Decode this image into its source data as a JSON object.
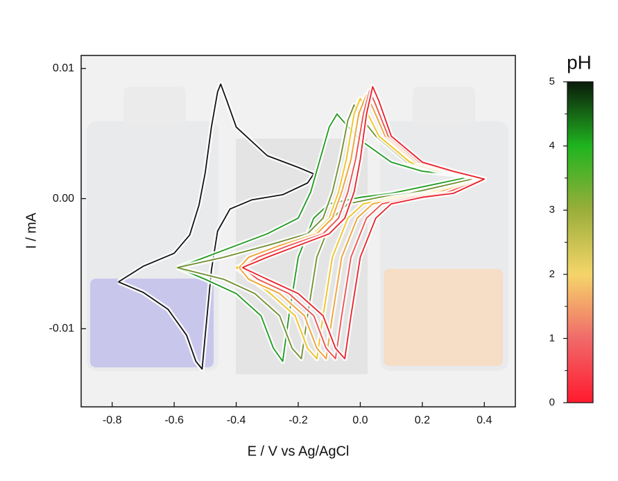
{
  "chart_data": {
    "type": "line",
    "xlabel": "E / V vs Ag/AgCl",
    "ylabel": "I / mA",
    "xlim": [
      -0.9,
      0.5
    ],
    "ylim": [
      -0.016,
      0.011
    ],
    "xticks": [
      -0.8,
      -0.6,
      -0.4,
      -0.2,
      {
        "value": 0,
        "label": "0.0"
      },
      0.2,
      0.4
    ],
    "yticks": [
      -0.01,
      {
        "value": 0,
        "label": "0.00"
      },
      0.01
    ],
    "series": [
      {
        "color": "#111111",
        "x": [
          -0.78,
          -0.7,
          -0.6,
          -0.55,
          -0.52,
          -0.5,
          -0.48,
          -0.46,
          -0.45,
          -0.43,
          -0.4,
          -0.3,
          -0.2,
          -0.15,
          -0.17,
          -0.25,
          -0.35,
          -0.42,
          -0.46,
          -0.48,
          -0.5,
          -0.51,
          -0.53,
          -0.56,
          -0.62,
          -0.7,
          -0.78
        ],
        "values": [
          -0.0064,
          -0.0052,
          -0.0042,
          -0.0028,
          -0.0005,
          0.002,
          0.0055,
          0.0082,
          0.0088,
          0.0075,
          0.0055,
          0.0033,
          0.0024,
          0.0019,
          0.0012,
          0.0003,
          -0.0001,
          -0.0008,
          -0.0025,
          -0.0055,
          -0.0105,
          -0.0131,
          -0.0125,
          -0.0105,
          -0.0085,
          -0.0072,
          -0.0064
        ]
      },
      {
        "color": "#1f9a1f",
        "x": [
          -0.59,
          -0.5,
          -0.4,
          -0.3,
          -0.2,
          -0.16,
          -0.13,
          -0.1,
          -0.075,
          -0.05,
          0,
          0.1,
          0.2,
          0.36,
          0.1,
          0,
          -0.1,
          -0.15,
          -0.2,
          -0.23,
          -0.25,
          -0.28,
          -0.32,
          -0.4,
          -0.5,
          -0.59
        ],
        "values": [
          -0.0053,
          -0.0045,
          -0.0036,
          -0.0027,
          -0.0015,
          0.0005,
          0.003,
          0.0055,
          0.0065,
          0.0058,
          0.0045,
          0.0028,
          0.0021,
          0.0017,
          0.0004,
          0.0001,
          -0.0004,
          -0.0015,
          -0.0045,
          -0.009,
          -0.0125,
          -0.0115,
          -0.009,
          -0.0073,
          -0.0062,
          -0.0053
        ]
      },
      {
        "color": "#6f8f2e",
        "x": [
          -0.59,
          -0.44,
          -0.3,
          -0.17,
          -0.12,
          -0.09,
          -0.065,
          -0.04,
          -0.02,
          0,
          0.05,
          0.15,
          0.25,
          0.38,
          0.16,
          0.06,
          -0.04,
          -0.09,
          -0.14,
          -0.17,
          -0.19,
          -0.22,
          -0.26,
          -0.34,
          -0.44,
          -0.59
        ],
        "values": [
          -0.0053,
          -0.0045,
          -0.0036,
          -0.0027,
          -0.0015,
          0.0005,
          0.003,
          0.006,
          0.0072,
          0.0063,
          0.0048,
          0.0028,
          0.0021,
          0.0016,
          0.0004,
          0.0001,
          -0.0004,
          -0.0015,
          -0.0045,
          -0.009,
          -0.0123,
          -0.0115,
          -0.009,
          -0.0073,
          -0.0062,
          -0.0053
        ]
      },
      {
        "color": "#f2c21e",
        "x": [
          -0.4,
          -0.25,
          -0.15,
          -0.1,
          -0.07,
          -0.045,
          -0.02,
          0,
          0.02,
          0.06,
          0.16,
          0.26,
          0.4,
          0.21,
          0.11,
          0.01,
          -0.04,
          -0.09,
          -0.12,
          -0.14,
          -0.17,
          -0.21,
          -0.29,
          -0.4
        ],
        "values": [
          -0.0053,
          -0.0036,
          -0.0027,
          -0.0015,
          0.0005,
          0.003,
          0.0065,
          0.0077,
          0.0067,
          0.0048,
          0.0028,
          0.0021,
          0.0015,
          0.0004,
          0.0001,
          -0.0004,
          -0.0015,
          -0.0045,
          -0.009,
          -0.0123,
          -0.0115,
          -0.009,
          -0.0073,
          -0.0053
        ]
      },
      {
        "color": "#f0a030",
        "x": [
          -0.39,
          -0.36,
          -0.26,
          -0.14,
          -0.09,
          -0.06,
          -0.03,
          -0.005,
          0.02,
          0.04,
          0.08,
          0.18,
          0.28,
          0.4,
          0.24,
          0.14,
          0.04,
          -0.01,
          -0.06,
          -0.09,
          -0.11,
          -0.14,
          -0.18,
          -0.26,
          -0.36,
          -0.39
        ],
        "values": [
          -0.0053,
          -0.0045,
          -0.0036,
          -0.0027,
          -0.0015,
          0.0005,
          0.003,
          0.0065,
          0.008,
          0.007,
          0.0048,
          0.0028,
          0.0021,
          0.0015,
          0.0004,
          0.0001,
          -0.0004,
          -0.0015,
          -0.0045,
          -0.009,
          -0.0123,
          -0.0115,
          -0.009,
          -0.0073,
          -0.0062,
          -0.0053
        ]
      },
      {
        "color": "#ee4d4d",
        "x": [
          -0.38,
          -0.33,
          -0.23,
          -0.12,
          -0.07,
          -0.04,
          -0.015,
          0.01,
          0.03,
          0.05,
          0.09,
          0.19,
          0.29,
          0.4,
          0.27,
          0.17,
          0.07,
          0.02,
          -0.03,
          -0.06,
          -0.08,
          -0.11,
          -0.15,
          -0.23,
          -0.33,
          -0.38
        ],
        "values": [
          -0.0053,
          -0.0045,
          -0.0036,
          -0.0027,
          -0.0015,
          0.0005,
          0.003,
          0.0065,
          0.0083,
          0.0072,
          0.0048,
          0.0028,
          0.0021,
          0.0015,
          0.0004,
          0.0001,
          -0.0004,
          -0.0015,
          -0.0045,
          -0.009,
          -0.0123,
          -0.0115,
          -0.009,
          -0.0073,
          -0.0062,
          -0.0053
        ]
      },
      {
        "color": "#e8202a",
        "x": [
          -0.38,
          -0.3,
          -0.2,
          -0.1,
          -0.05,
          -0.02,
          0,
          0.02,
          0.04,
          0.06,
          0.1,
          0.2,
          0.3,
          0.4,
          0.3,
          0.2,
          0.1,
          0.05,
          0,
          -0.03,
          -0.05,
          -0.08,
          -0.12,
          -0.2,
          -0.3,
          -0.38
        ],
        "values": [
          -0.0053,
          -0.0045,
          -0.0036,
          -0.0027,
          -0.0015,
          0.0005,
          0.003,
          0.0065,
          0.0086,
          0.0075,
          0.0048,
          0.0028,
          0.0021,
          0.0015,
          0.0004,
          0.0001,
          -0.0004,
          -0.0015,
          -0.0045,
          -0.009,
          -0.0123,
          -0.0115,
          -0.009,
          -0.0073,
          -0.0062,
          -0.0053
        ]
      }
    ],
    "colorbar": {
      "label": "pH",
      "lim": [
        0,
        5
      ],
      "ticks": [
        0,
        1,
        2,
        3,
        4,
        5
      ],
      "minor_ticks": [
        0.5,
        1.5,
        2.5,
        3.5,
        4.5
      ],
      "colors": [
        "#ff1a2e",
        "#f06a6a",
        "#f5d56a",
        "#9aae3a",
        "#1fb41f",
        "#0b1a0b"
      ]
    }
  }
}
